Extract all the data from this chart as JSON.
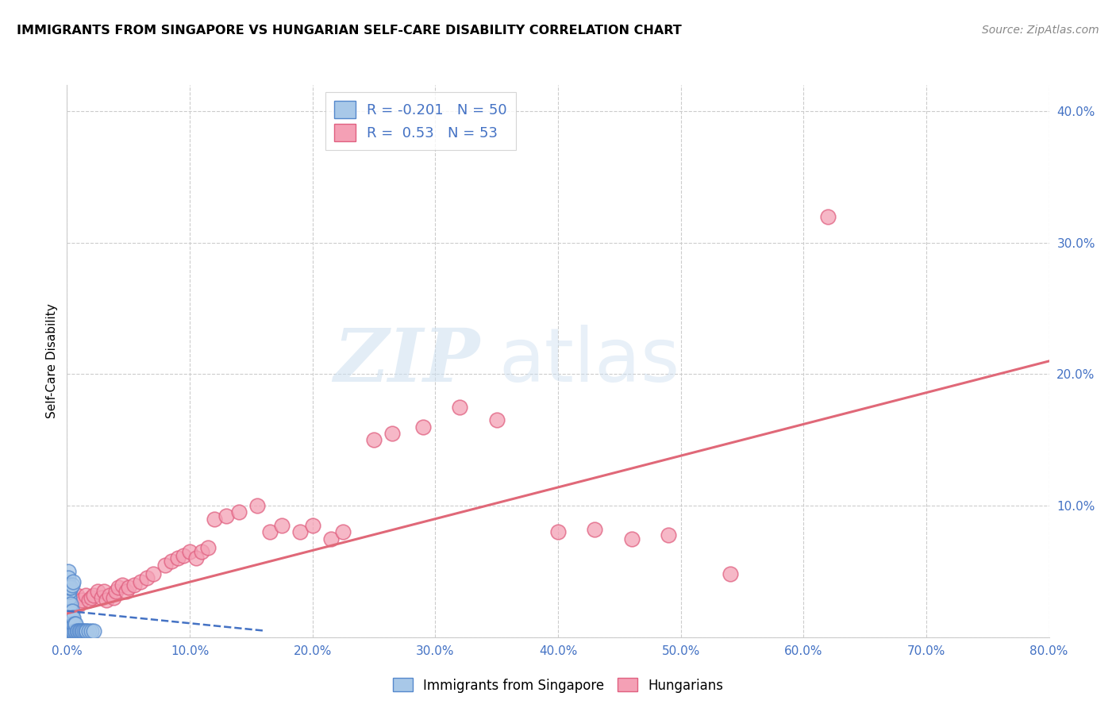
{
  "title": "IMMIGRANTS FROM SINGAPORE VS HUNGARIAN SELF-CARE DISABILITY CORRELATION CHART",
  "source": "Source: ZipAtlas.com",
  "ylabel": "Self-Care Disability",
  "xlim": [
    0.0,
    0.8
  ],
  "ylim": [
    0.0,
    0.42
  ],
  "xticks": [
    0.0,
    0.1,
    0.2,
    0.3,
    0.4,
    0.5,
    0.6,
    0.7,
    0.8
  ],
  "xtick_labels": [
    "0.0%",
    "10.0%",
    "20.0%",
    "30.0%",
    "40.0%",
    "50.0%",
    "60.0%",
    "70.0%",
    "80.0%"
  ],
  "yticks": [
    0.0,
    0.1,
    0.2,
    0.3,
    0.4
  ],
  "ytick_labels": [
    "",
    "10.0%",
    "20.0%",
    "30.0%",
    "40.0%"
  ],
  "blue_R": -0.201,
  "blue_N": 50,
  "pink_R": 0.53,
  "pink_N": 53,
  "blue_color": "#a8c8e8",
  "pink_color": "#f4a0b5",
  "blue_edge_color": "#5588cc",
  "pink_edge_color": "#e06080",
  "blue_line_color": "#4472c4",
  "pink_line_color": "#e06878",
  "axis_color": "#4472c4",
  "watermark_zip": "ZIP",
  "watermark_atlas": "atlas",
  "blue_scatter_x": [
    0.001,
    0.001,
    0.001,
    0.001,
    0.001,
    0.001,
    0.001,
    0.001,
    0.002,
    0.002,
    0.002,
    0.002,
    0.002,
    0.002,
    0.002,
    0.003,
    0.003,
    0.003,
    0.003,
    0.003,
    0.004,
    0.004,
    0.004,
    0.004,
    0.005,
    0.005,
    0.005,
    0.006,
    0.006,
    0.007,
    0.007,
    0.008,
    0.009,
    0.01,
    0.011,
    0.012,
    0.013,
    0.014,
    0.015,
    0.016,
    0.018,
    0.02,
    0.022,
    0.001,
    0.001,
    0.002,
    0.002,
    0.003,
    0.004,
    0.005
  ],
  "blue_scatter_y": [
    0.005,
    0.01,
    0.015,
    0.02,
    0.025,
    0.03,
    0.035,
    0.04,
    0.005,
    0.01,
    0.015,
    0.02,
    0.025,
    0.03,
    0.035,
    0.005,
    0.01,
    0.015,
    0.02,
    0.025,
    0.005,
    0.01,
    0.015,
    0.02,
    0.005,
    0.01,
    0.015,
    0.005,
    0.01,
    0.005,
    0.01,
    0.005,
    0.005,
    0.005,
    0.005,
    0.005,
    0.005,
    0.005,
    0.005,
    0.005,
    0.005,
    0.005,
    0.005,
    0.05,
    0.045,
    0.04,
    0.038,
    0.038,
    0.04,
    0.042
  ],
  "pink_scatter_x": [
    0.004,
    0.006,
    0.008,
    0.01,
    0.012,
    0.015,
    0.018,
    0.02,
    0.022,
    0.025,
    0.028,
    0.03,
    0.032,
    0.035,
    0.038,
    0.04,
    0.042,
    0.045,
    0.048,
    0.05,
    0.055,
    0.06,
    0.065,
    0.07,
    0.08,
    0.085,
    0.09,
    0.095,
    0.1,
    0.105,
    0.11,
    0.115,
    0.12,
    0.13,
    0.14,
    0.155,
    0.165,
    0.175,
    0.19,
    0.2,
    0.215,
    0.225,
    0.25,
    0.265,
    0.29,
    0.32,
    0.35,
    0.4,
    0.43,
    0.46,
    0.49,
    0.54,
    0.62
  ],
  "pink_scatter_y": [
    0.03,
    0.028,
    0.032,
    0.025,
    0.028,
    0.032,
    0.028,
    0.03,
    0.032,
    0.035,
    0.03,
    0.035,
    0.028,
    0.032,
    0.03,
    0.035,
    0.038,
    0.04,
    0.035,
    0.038,
    0.04,
    0.042,
    0.045,
    0.048,
    0.055,
    0.058,
    0.06,
    0.062,
    0.065,
    0.06,
    0.065,
    0.068,
    0.09,
    0.092,
    0.095,
    0.1,
    0.08,
    0.085,
    0.08,
    0.085,
    0.075,
    0.08,
    0.15,
    0.155,
    0.16,
    0.175,
    0.165,
    0.08,
    0.082,
    0.075,
    0.078,
    0.048,
    0.32
  ]
}
